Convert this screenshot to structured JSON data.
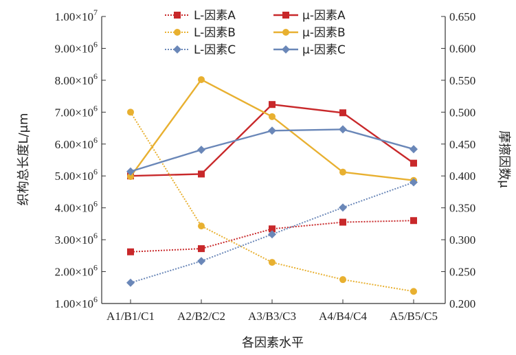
{
  "chart_data": {
    "type": "line",
    "xlabel": "各因素水平",
    "ylabel_left": "织构总长度L/μm",
    "ylabel_right": "摩擦因数μ",
    "categories": [
      "A1/B1/C1",
      "A2/B2/C2",
      "A3/B3/C3",
      "A4/B4/C4",
      "A5/B5/C5"
    ],
    "y_left": {
      "lim": [
        1000000,
        10000000
      ],
      "ticks": [
        {
          "value": 1000000,
          "mantissa": "1.00",
          "exp": "6"
        },
        {
          "value": 2000000,
          "mantissa": "2.00",
          "exp": "6"
        },
        {
          "value": 3000000,
          "mantissa": "3.00",
          "exp": "6"
        },
        {
          "value": 4000000,
          "mantissa": "4.00",
          "exp": "6"
        },
        {
          "value": 5000000,
          "mantissa": "5.00",
          "exp": "6"
        },
        {
          "value": 6000000,
          "mantissa": "6.00",
          "exp": "6"
        },
        {
          "value": 7000000,
          "mantissa": "7.00",
          "exp": "6"
        },
        {
          "value": 8000000,
          "mantissa": "8.00",
          "exp": "6"
        },
        {
          "value": 9000000,
          "mantissa": "9.00",
          "exp": "6"
        },
        {
          "value": 10000000,
          "mantissa": "1.00",
          "exp": "7"
        }
      ],
      "times_sign": "×10"
    },
    "y_right": {
      "lim": [
        0.2,
        0.65
      ],
      "ticks": [
        {
          "value": 0.2,
          "label": "0.200"
        },
        {
          "value": 0.25,
          "label": "0.250"
        },
        {
          "value": 0.3,
          "label": "0.300"
        },
        {
          "value": 0.35,
          "label": "0.350"
        },
        {
          "value": 0.4,
          "label": "0.400"
        },
        {
          "value": 0.45,
          "label": "0.450"
        },
        {
          "value": 0.5,
          "label": "0.500"
        },
        {
          "value": 0.55,
          "label": "0.550"
        },
        {
          "value": 0.6,
          "label": "0.600"
        },
        {
          "value": 0.65,
          "label": "0.650"
        }
      ]
    },
    "legend_position": "top-center",
    "series": [
      {
        "name": "L-因素A",
        "axis": "left",
        "style": "dotted",
        "marker": "square",
        "color": "#c8282a",
        "values": [
          2620000,
          2720000,
          3340000,
          3550000,
          3600000
        ]
      },
      {
        "name": "μ-因素A",
        "axis": "right",
        "style": "solid",
        "marker": "square",
        "color": "#c8282a",
        "values": [
          0.4,
          0.403,
          0.512,
          0.499,
          0.42
        ]
      },
      {
        "name": "L-因素B",
        "axis": "left",
        "style": "dotted",
        "marker": "circle",
        "color": "#e8b030",
        "values": [
          7000000,
          3430000,
          2290000,
          1750000,
          1380000
        ]
      },
      {
        "name": "μ-因素B",
        "axis": "right",
        "style": "solid",
        "marker": "circle",
        "color": "#e8b030",
        "values": [
          0.399,
          0.551,
          0.493,
          0.406,
          0.393
        ]
      },
      {
        "name": "L-因素C",
        "axis": "left",
        "style": "dotted",
        "marker": "diamond",
        "color": "#6a87b8",
        "values": [
          1650000,
          2330000,
          3170000,
          4010000,
          4800000
        ]
      },
      {
        "name": "μ-因素C",
        "axis": "right",
        "style": "solid",
        "marker": "diamond",
        "color": "#6a87b8",
        "values": [
          0.407,
          0.441,
          0.471,
          0.473,
          0.442
        ]
      }
    ]
  }
}
